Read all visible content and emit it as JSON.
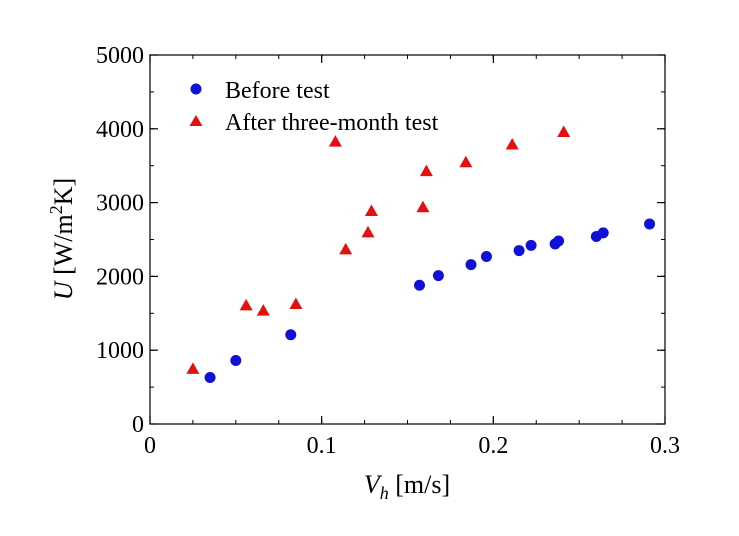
{
  "chart_data": {
    "type": "scatter",
    "title": "",
    "xlabel": {
      "var": "V",
      "sub": "h",
      "unit": " [m/s]"
    },
    "ylabel": {
      "var": "U",
      "unit_pre": " [W/m",
      "sup": "2",
      "unit_post": "K]"
    },
    "xlim": [
      0,
      0.3
    ],
    "ylim": [
      0,
      5000
    ],
    "x_ticks": [
      0,
      0.1,
      0.2,
      0.3
    ],
    "x_tick_labels": [
      "0",
      "0.1",
      "0.2",
      "0.3"
    ],
    "y_ticks": [
      0,
      1000,
      2000,
      3000,
      4000,
      5000
    ],
    "y_tick_labels": [
      "0",
      "1000",
      "2000",
      "3000",
      "4000",
      "5000"
    ],
    "grid": false,
    "legend_position": "top-left",
    "series": [
      {
        "name": "Before test",
        "marker": "circle",
        "color": "#1010d8",
        "points": [
          [
            0.035,
            630
          ],
          [
            0.05,
            860
          ],
          [
            0.082,
            1210
          ],
          [
            0.157,
            1880
          ],
          [
            0.168,
            2010
          ],
          [
            0.187,
            2160
          ],
          [
            0.196,
            2270
          ],
          [
            0.215,
            2350
          ],
          [
            0.222,
            2420
          ],
          [
            0.236,
            2440
          ],
          [
            0.238,
            2480
          ],
          [
            0.26,
            2540
          ],
          [
            0.264,
            2590
          ],
          [
            0.291,
            2710
          ]
        ]
      },
      {
        "name": "After three-month test",
        "marker": "triangle",
        "color": "#e41010",
        "points": [
          [
            0.025,
            740
          ],
          [
            0.056,
            1600
          ],
          [
            0.066,
            1530
          ],
          [
            0.085,
            1620
          ],
          [
            0.108,
            3820
          ],
          [
            0.114,
            2360
          ],
          [
            0.127,
            2590
          ],
          [
            0.129,
            2880
          ],
          [
            0.159,
            2930
          ],
          [
            0.161,
            3420
          ],
          [
            0.184,
            3540
          ],
          [
            0.211,
            3780
          ],
          [
            0.241,
            3950
          ]
        ]
      }
    ]
  }
}
